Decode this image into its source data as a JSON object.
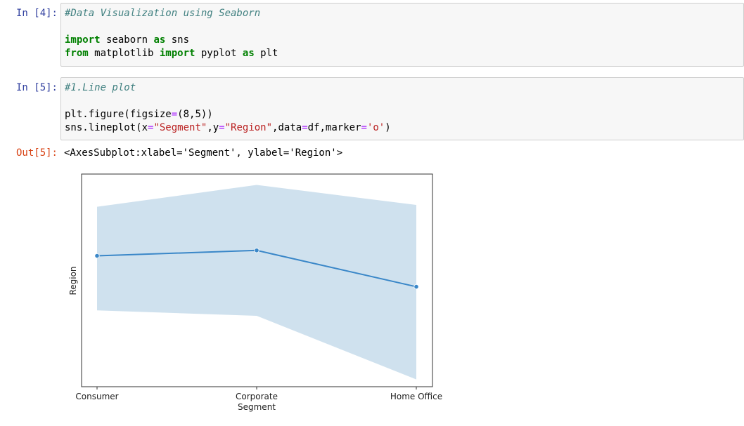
{
  "cells": [
    {
      "prompt": "In [4]:",
      "lines": [
        [
          {
            "t": "comment",
            "v": "#Data Visualization using Seaborn"
          }
        ],
        [],
        [
          {
            "t": "kw",
            "v": "import"
          },
          {
            "t": "plain",
            "v": " seaborn "
          },
          {
            "t": "kw",
            "v": "as"
          },
          {
            "t": "plain",
            "v": " sns"
          }
        ],
        [
          {
            "t": "kw",
            "v": "from"
          },
          {
            "t": "plain",
            "v": " matplotlib "
          },
          {
            "t": "kw",
            "v": "import"
          },
          {
            "t": "plain",
            "v": " pyplot "
          },
          {
            "t": "kw",
            "v": "as"
          },
          {
            "t": "plain",
            "v": " plt"
          }
        ]
      ]
    },
    {
      "prompt": "In [5]:",
      "lines": [
        [
          {
            "t": "comment",
            "v": "#1.Line plot"
          }
        ],
        [],
        [
          {
            "t": "plain",
            "v": "plt.figure(figsize"
          },
          {
            "t": "op",
            "v": "="
          },
          {
            "t": "plain",
            "v": "(8,5))"
          }
        ],
        [
          {
            "t": "plain",
            "v": "sns.lineplot(x"
          },
          {
            "t": "op",
            "v": "="
          },
          {
            "t": "str",
            "v": "\"Segment\""
          },
          {
            "t": "plain",
            "v": ",y"
          },
          {
            "t": "op",
            "v": "="
          },
          {
            "t": "str",
            "v": "\"Region\""
          },
          {
            "t": "plain",
            "v": ",data"
          },
          {
            "t": "op",
            "v": "="
          },
          {
            "t": "plain",
            "v": "df,marker"
          },
          {
            "t": "op",
            "v": "="
          },
          {
            "t": "str",
            "v": "'o'"
          },
          {
            "t": "plain",
            "v": ")"
          }
        ]
      ]
    }
  ],
  "output": {
    "prompt": "Out[5]:",
    "text": "<AxesSubplot:xlabel='Segment', ylabel='Region'>"
  },
  "chart_data": {
    "type": "line",
    "categories": [
      "Consumer",
      "Corporate",
      "Home Office"
    ],
    "series": [
      {
        "values": [
          0.5,
          0.53,
          0.33
        ],
        "ci_lower": [
          0.2,
          0.17,
          -0.18
        ],
        "ci_upper": [
          0.77,
          0.89,
          0.78
        ]
      }
    ],
    "title": "",
    "xlabel": "Segment",
    "ylabel": "Region",
    "ylim": [
      -0.22,
      0.95
    ],
    "y_tick_labels_shown": false,
    "grid": false,
    "line_color": "#3a87c8",
    "band_color": "#cfe1ee",
    "marker": "o"
  }
}
